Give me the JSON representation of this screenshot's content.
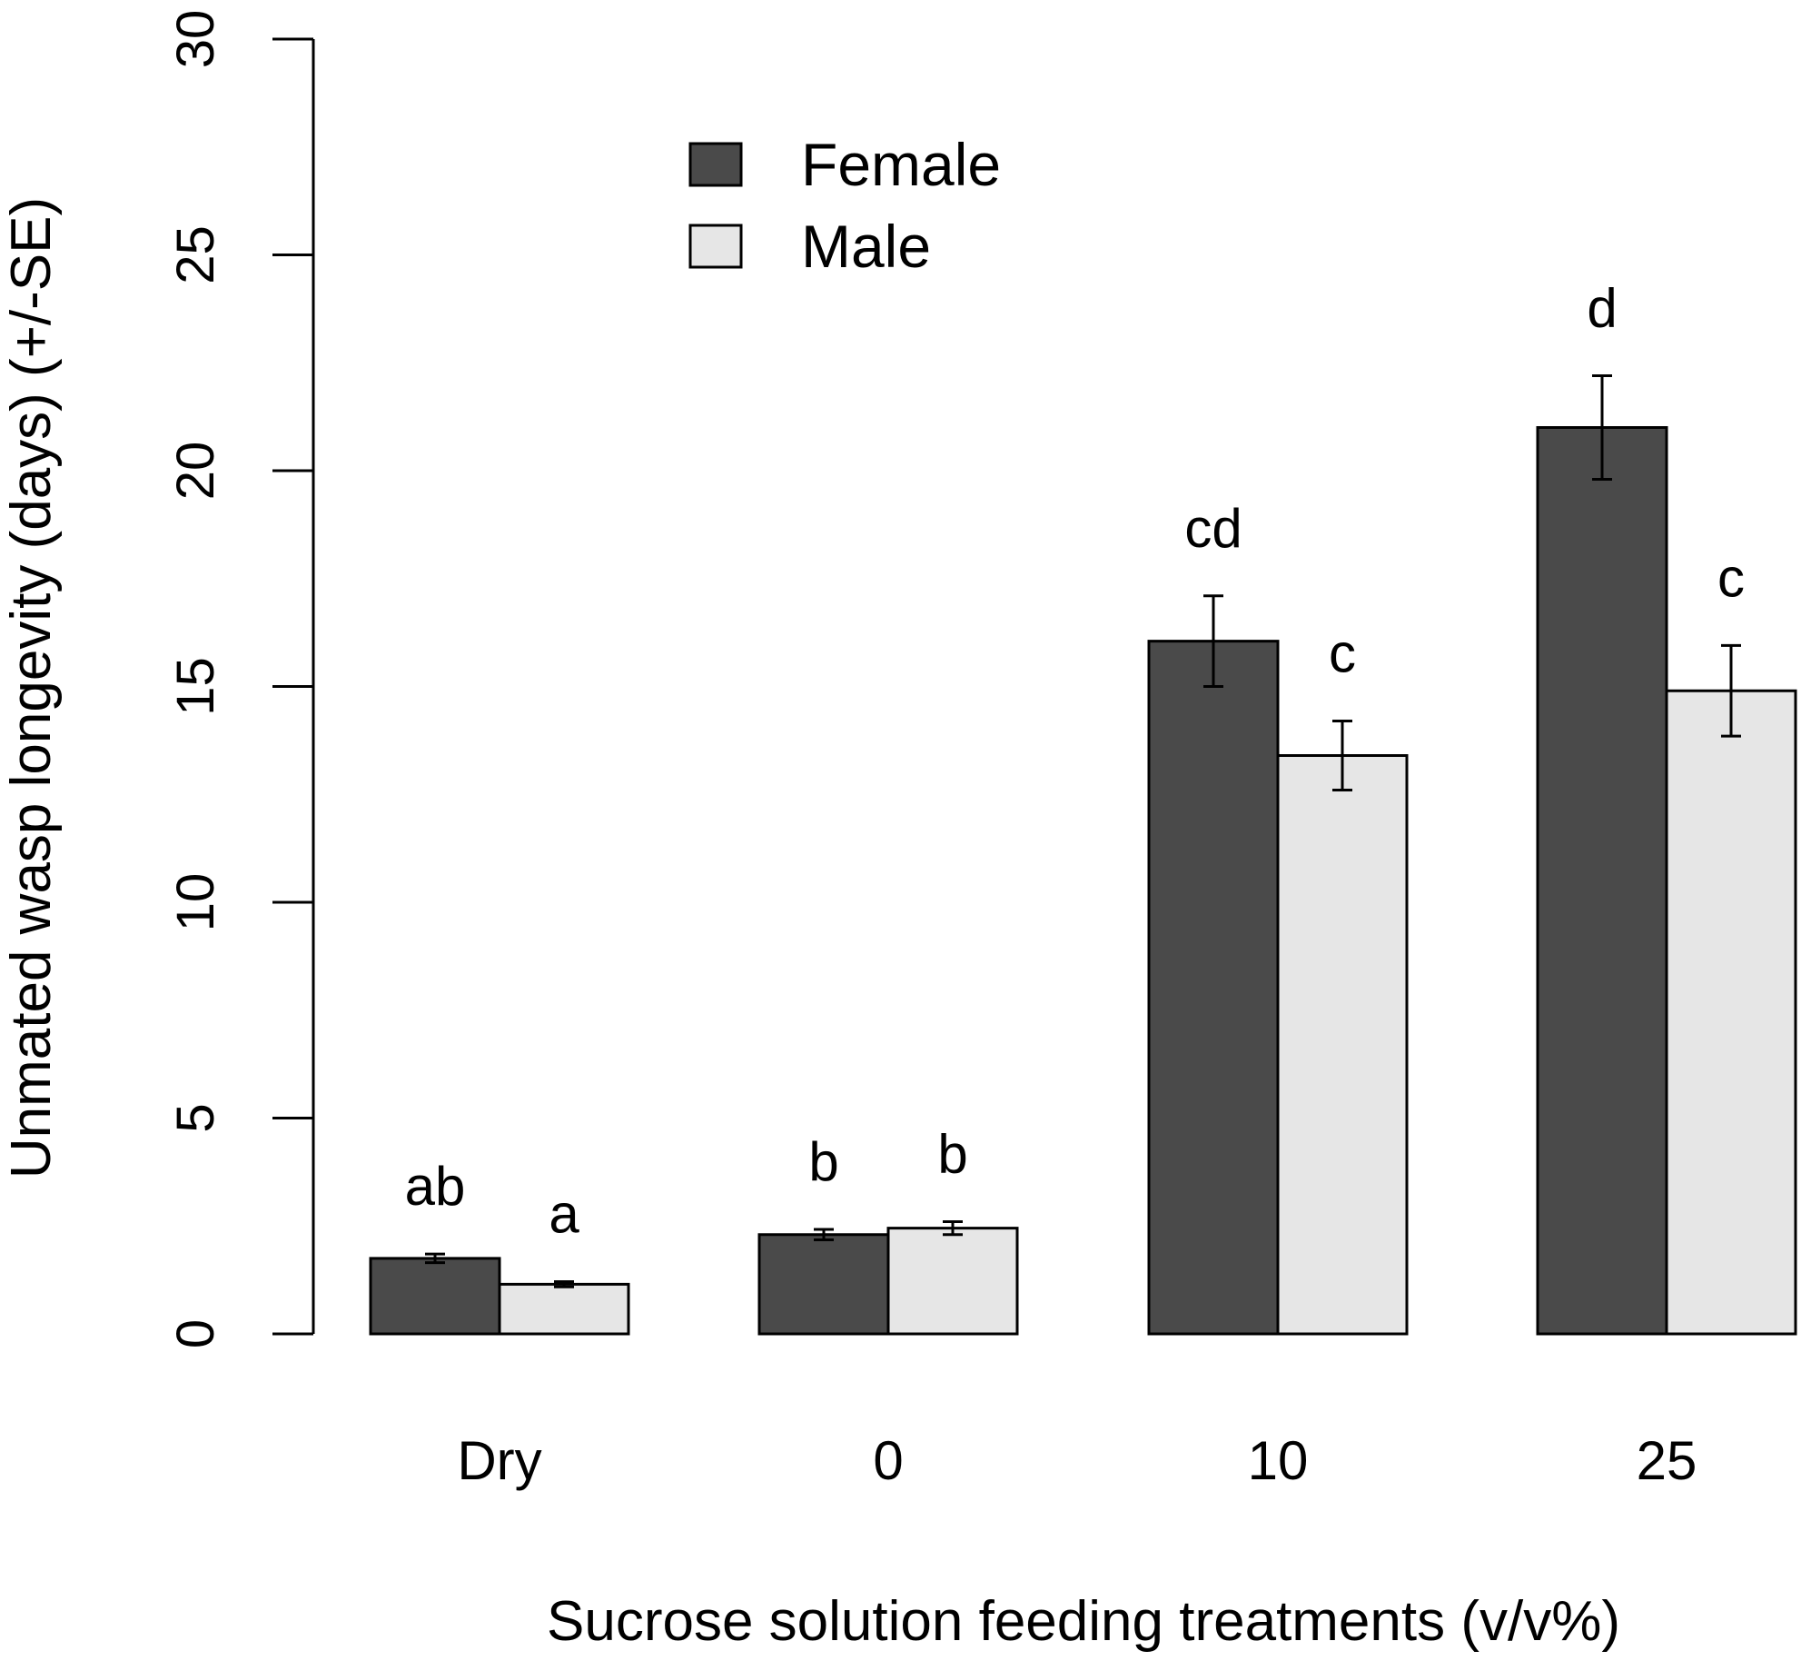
{
  "chart_data": {
    "type": "bar",
    "title": "",
    "xlabel": "Sucrose solution feeding treatments (v/v%)",
    "ylabel": "Unmated wasp longevity (days) (+/-SE)",
    "ylim": [
      0,
      30
    ],
    "yticks": [
      0,
      5,
      10,
      15,
      20,
      25,
      30
    ],
    "categories": [
      "Dry",
      "0",
      "10",
      "25"
    ],
    "legend_position": "top-left",
    "series": [
      {
        "name": "Female",
        "color": "#4a4a4a",
        "values": [
          1.75,
          2.3,
          16.05,
          21.0
        ],
        "se": [
          0.1,
          0.12,
          1.05,
          1.2
        ],
        "letters": [
          "ab",
          "b",
          "cd",
          "d"
        ]
      },
      {
        "name": "Male",
        "color": "#e6e6e6",
        "values": [
          1.15,
          2.45,
          13.4,
          14.9
        ],
        "se": [
          0.06,
          0.15,
          0.8,
          1.05
        ],
        "letters": [
          "a",
          "b",
          "c",
          "c"
        ]
      }
    ]
  }
}
